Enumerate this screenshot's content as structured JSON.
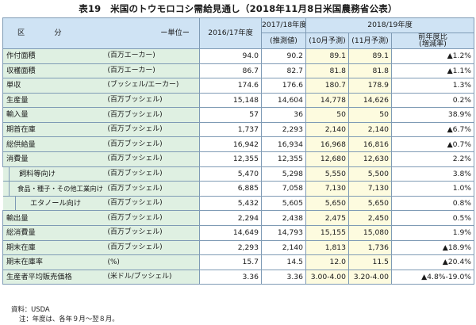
{
  "title": "表19　米国のトウモロコシ需給見通し（2018年11月8日米国農務省公表）",
  "header": {
    "kubun": "区　分",
    "unit_label": "ー単位ー",
    "col_2016": "2016/17年度",
    "col_2017": "2017/18年度",
    "col_2017_sub": "(推測値)",
    "col_2018": "2018/19年度",
    "col_2018_oct": "(10月予測)",
    "col_2018_nov": "(11月予測)",
    "col_change": "前年度比",
    "col_change_sub": "(増減率)"
  },
  "rows": [
    {
      "item": "作付面積",
      "unit": "(百万エーカー)",
      "v2016": "94.0",
      "v2017": "90.2",
      "oct": "89.1",
      "nov": "89.1",
      "change": "▲1.2%",
      "indent": 0,
      "group_top": false
    },
    {
      "item": "収穫面積",
      "unit": "(百万エーカー)",
      "v2016": "86.7",
      "v2017": "82.7",
      "oct": "81.8",
      "nov": "81.8",
      "change": "▲1.1%",
      "indent": 0,
      "group_top": false
    },
    {
      "item": "単収",
      "unit": "(ブッシェル/エーカー)",
      "v2016": "174.6",
      "v2017": "176.6",
      "oct": "180.7",
      "nov": "178.9",
      "change": "1.3%",
      "indent": 0,
      "group_top": false
    },
    {
      "item": "生産量",
      "unit": "(百万ブッシェル)",
      "v2016": "15,148",
      "v2017": "14,604",
      "oct": "14,778",
      "nov": "14,626",
      "change": "0.2%",
      "indent": 0,
      "group_top": false
    },
    {
      "item": "輸入量",
      "unit": "(百万ブッシェル)",
      "v2016": "57",
      "v2017": "36",
      "oct": "50",
      "nov": "50",
      "change": "38.9%",
      "indent": 0,
      "group_top": false
    },
    {
      "item": "期首在庫",
      "unit": "(百万ブッシェル)",
      "v2016": "1,737",
      "v2017": "2,293",
      "oct": "2,140",
      "nov": "2,140",
      "change": "▲6.7%",
      "indent": 0,
      "group_top": false
    },
    {
      "item": "総供給量",
      "unit": "(百万ブッシェル)",
      "v2016": "16,942",
      "v2017": "16,934",
      "oct": "16,968",
      "nov": "16,816",
      "change": "▲0.7%",
      "indent": 0,
      "group_top": false
    },
    {
      "item": "消費量",
      "unit": "(百万ブッシェル)",
      "v2016": "12,355",
      "v2017": "12,355",
      "oct": "12,680",
      "nov": "12,630",
      "change": "2.2%",
      "indent": 0,
      "group_top": true
    },
    {
      "item": "飼料等向け",
      "unit": "(百万ブッシェル)",
      "v2016": "5,470",
      "v2017": "5,298",
      "oct": "5,550",
      "nov": "5,500",
      "change": "3.8%",
      "indent": 1,
      "group_top": false
    },
    {
      "item": "食品・種子・その他工業向け",
      "unit": "(百万ブッシェル)",
      "v2016": "6,885",
      "v2017": "7,058",
      "oct": "7,130",
      "nov": "7,130",
      "change": "1.0%",
      "indent": 1,
      "group_top": false
    },
    {
      "item": "エタノール向け",
      "unit": "(百万ブッシェル)",
      "v2016": "5,432",
      "v2017": "5,605",
      "oct": "5,650",
      "nov": "5,650",
      "change": "0.8%",
      "indent": 2,
      "group_top": false
    },
    {
      "item": "輸出量",
      "unit": "(百万ブッシェル)",
      "v2016": "2,294",
      "v2017": "2,438",
      "oct": "2,475",
      "nov": "2,450",
      "change": "0.5%",
      "indent": 0,
      "group_top": false
    },
    {
      "item": "総消費量",
      "unit": "(百万ブッシェル)",
      "v2016": "14,649",
      "v2017": "14,793",
      "oct": "15,155",
      "nov": "15,080",
      "change": "1.9%",
      "indent": 0,
      "group_top": false
    },
    {
      "item": "期末在庫",
      "unit": "(百万ブッシェル)",
      "v2016": "2,293",
      "v2017": "2,140",
      "oct": "1,813",
      "nov": "1,736",
      "change": "▲18.9%",
      "indent": 0,
      "group_top": true
    },
    {
      "item": "期末在庫率",
      "unit": "(%)",
      "v2016": "15.7",
      "v2017": "14.5",
      "oct": "12.0",
      "nov": "11.5",
      "change": "▲20.4%",
      "indent": 0,
      "group_top": false
    },
    {
      "item": "生産者平均販売価格",
      "unit": "(米ドル/ブッシェル)",
      "v2016": "3.36",
      "v2017": "3.36",
      "oct": "3.00-4.00",
      "nov": "3.20-4.00",
      "change": "▲4.8%-19.0%",
      "indent": 0,
      "group_top": false
    }
  ],
  "notes": {
    "source": "資料：USDA",
    "note": "注：年度は、各年９月〜翌８月。"
  }
}
